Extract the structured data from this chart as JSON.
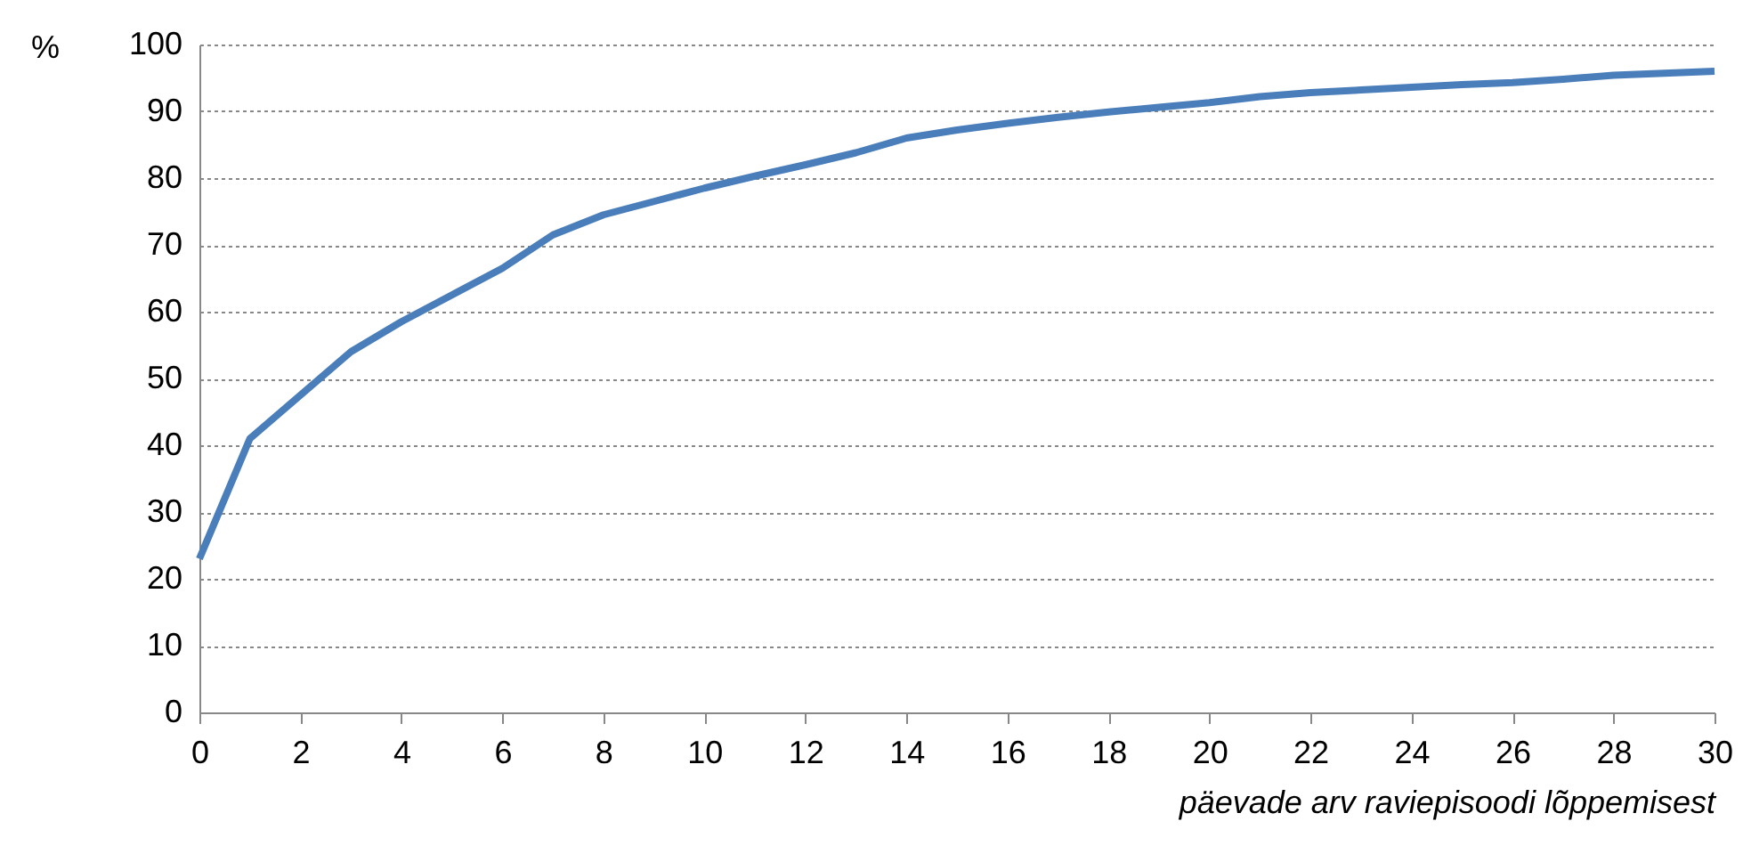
{
  "chart_data": {
    "type": "line",
    "xlabel": "päevade arv raviepisoodi lõppemisest",
    "ylabel": "%",
    "x": [
      0,
      1,
      2,
      3,
      4,
      5,
      6,
      7,
      8,
      9,
      10,
      11,
      12,
      13,
      14,
      15,
      16,
      17,
      18,
      19,
      20,
      21,
      22,
      23,
      24,
      25,
      26,
      27,
      28,
      29,
      30
    ],
    "series": [
      {
        "color": "#4a7ebb",
        "values": [
          23,
          41,
          47.5,
          54,
          58.5,
          62.5,
          66.5,
          71.5,
          74.5,
          76.5,
          78.5,
          80.3,
          82,
          83.8,
          86,
          87.2,
          88.2,
          89.1,
          89.9,
          90.6,
          91.3,
          92.2,
          92.8,
          93.2,
          93.6,
          94,
          94.3,
          94.8,
          95.4,
          95.7,
          96
        ]
      }
    ],
    "xlim": [
      0,
      30
    ],
    "xticks": [
      0,
      2,
      4,
      6,
      8,
      10,
      12,
      14,
      16,
      18,
      20,
      22,
      24,
      26,
      28,
      30
    ],
    "ylim": [
      0,
      100
    ],
    "yticks": [
      0,
      10,
      20,
      30,
      40,
      50,
      60,
      70,
      80,
      90,
      100
    ],
    "grid": "y",
    "marker": "none",
    "line_style": "solid"
  }
}
